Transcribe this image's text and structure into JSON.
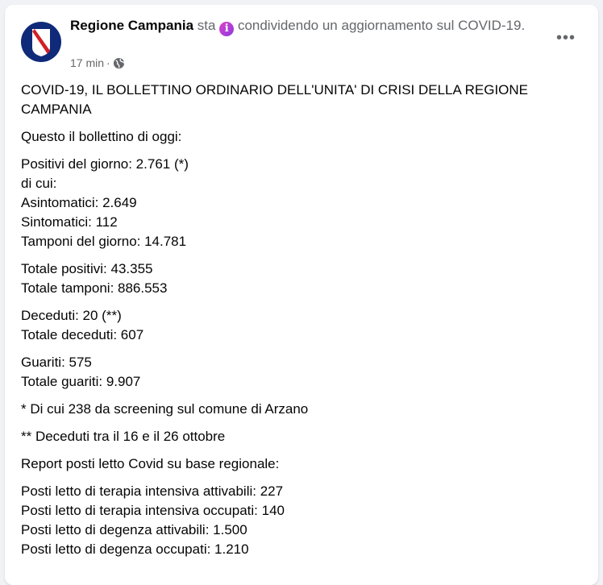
{
  "post": {
    "author": "Regione Campania",
    "verb": "sta",
    "activity": "condividendo un aggiornamento sul COVID-19.",
    "time": "17 min",
    "separator": "·",
    "privacy_icon": "globe-icon",
    "info_icon": "info-icon",
    "more_icon": "more-horizontal-icon",
    "paragraphs": [
      [
        "COVID-19, IL BOLLETTINO ORDINARIO DELL'UNITA' DI CRISI DELLA REGIONE CAMPANIA"
      ],
      [
        "Questo il bollettino di oggi:"
      ],
      [
        "Positivi del giorno: 2.761 (*)",
        "di cui:",
        "Asintomatici: 2.649",
        "Sintomatici: 112",
        "Tamponi del giorno: 14.781"
      ],
      [
        "Totale positivi: 43.355",
        "Totale tamponi: 886.553"
      ],
      [
        "Deceduti: 20 (**)",
        "Totale deceduti: 607"
      ],
      [
        "Guariti: 575",
        "Totale guariti: 9.907"
      ],
      [
        "* Di cui 238 da screening sul comune di Arzano"
      ],
      [
        "** Deceduti tra il 16 e il 26 ottobre"
      ],
      [
        "Report posti letto Covid su base regionale:"
      ],
      [
        "Posti letto di terapia intensiva attivabili: 227",
        "Posti letto di terapia intensiva occupati: 140",
        "Posti letto di degenza attivabili: 1.500",
        "Posti letto di degenza occupati: 1.210"
      ]
    ]
  }
}
